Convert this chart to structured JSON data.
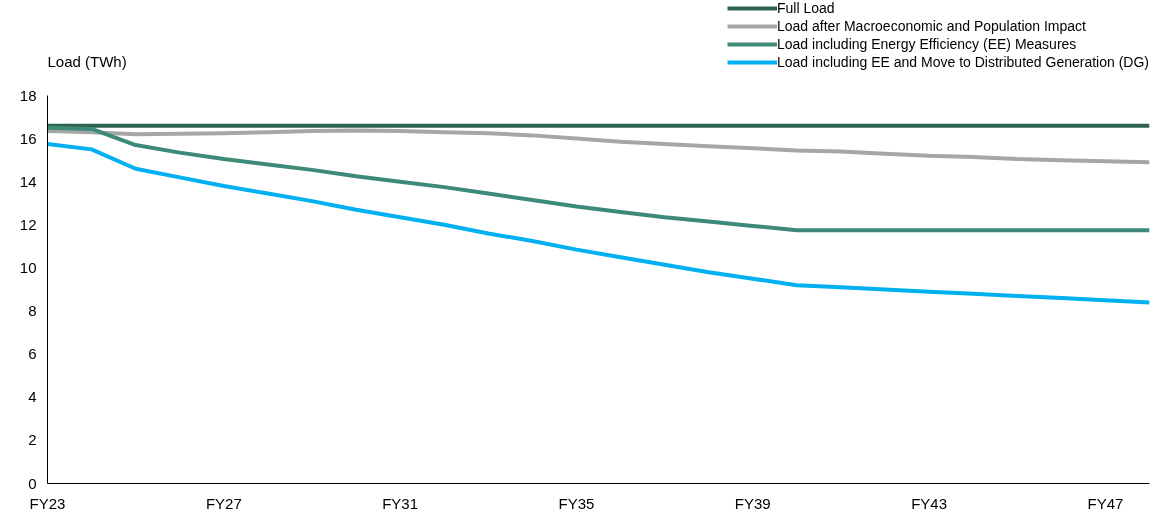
{
  "chart_data": {
    "type": "line",
    "ylabel": "Load (TWh)",
    "categories": [
      "FY23",
      null,
      null,
      null,
      "FY27",
      null,
      null,
      null,
      "FY31",
      null,
      null,
      null,
      "FY35",
      null,
      null,
      null,
      "FY39",
      null,
      null,
      null,
      "FY43",
      null,
      null,
      null,
      "FY47",
      null
    ],
    "ylim": [
      0,
      18
    ],
    "yticks": [
      0,
      2,
      4,
      6,
      8,
      10,
      12,
      14,
      16,
      18
    ],
    "grid": false,
    "legend": "top right",
    "marker": "none",
    "line_style": "solid",
    "series": [
      {
        "name": "Full Load",
        "color": "#2e6350",
        "values": [
          16.6,
          16.6,
          16.6,
          16.6,
          16.6,
          16.6,
          16.6,
          16.6,
          16.6,
          16.6,
          16.6,
          16.6,
          16.6,
          16.6,
          16.6,
          16.6,
          16.6,
          16.6,
          16.6,
          16.6,
          16.6,
          16.6,
          16.6,
          16.6,
          16.6,
          16.6
        ]
      },
      {
        "name": "Load after Macroeconomic and Population Impact",
        "color": "#a6a6a6",
        "values": [
          16.35,
          16.3,
          16.2,
          16.22,
          16.25,
          16.3,
          16.35,
          16.38,
          16.35,
          16.3,
          16.25,
          16.15,
          16.0,
          15.85,
          15.75,
          15.65,
          15.55,
          15.45,
          15.4,
          15.3,
          15.2,
          15.15,
          15.05,
          15.0,
          14.95,
          14.9
        ]
      },
      {
        "name": "Load including Energy Efficiency (EE) Measures",
        "color": "#3d8a78",
        "values": [
          16.5,
          16.45,
          15.7,
          15.35,
          15.05,
          14.8,
          14.55,
          14.25,
          14.0,
          13.75,
          13.45,
          13.15,
          12.85,
          12.6,
          12.35,
          12.15,
          11.95,
          11.75,
          11.75,
          11.75,
          11.75,
          11.75,
          11.75,
          11.75,
          11.75,
          11.75
        ]
      },
      {
        "name": "Load including EE and Move to Distributed Generation (DG)",
        "color": "#00b0f0",
        "values": [
          15.75,
          15.5,
          14.6,
          14.2,
          13.8,
          13.45,
          13.1,
          12.7,
          12.35,
          12.0,
          11.6,
          11.25,
          10.85,
          10.5,
          10.15,
          9.8,
          9.5,
          9.2,
          9.1,
          9.0,
          8.9,
          8.8,
          8.7,
          8.6,
          8.5,
          8.4
        ]
      }
    ]
  }
}
